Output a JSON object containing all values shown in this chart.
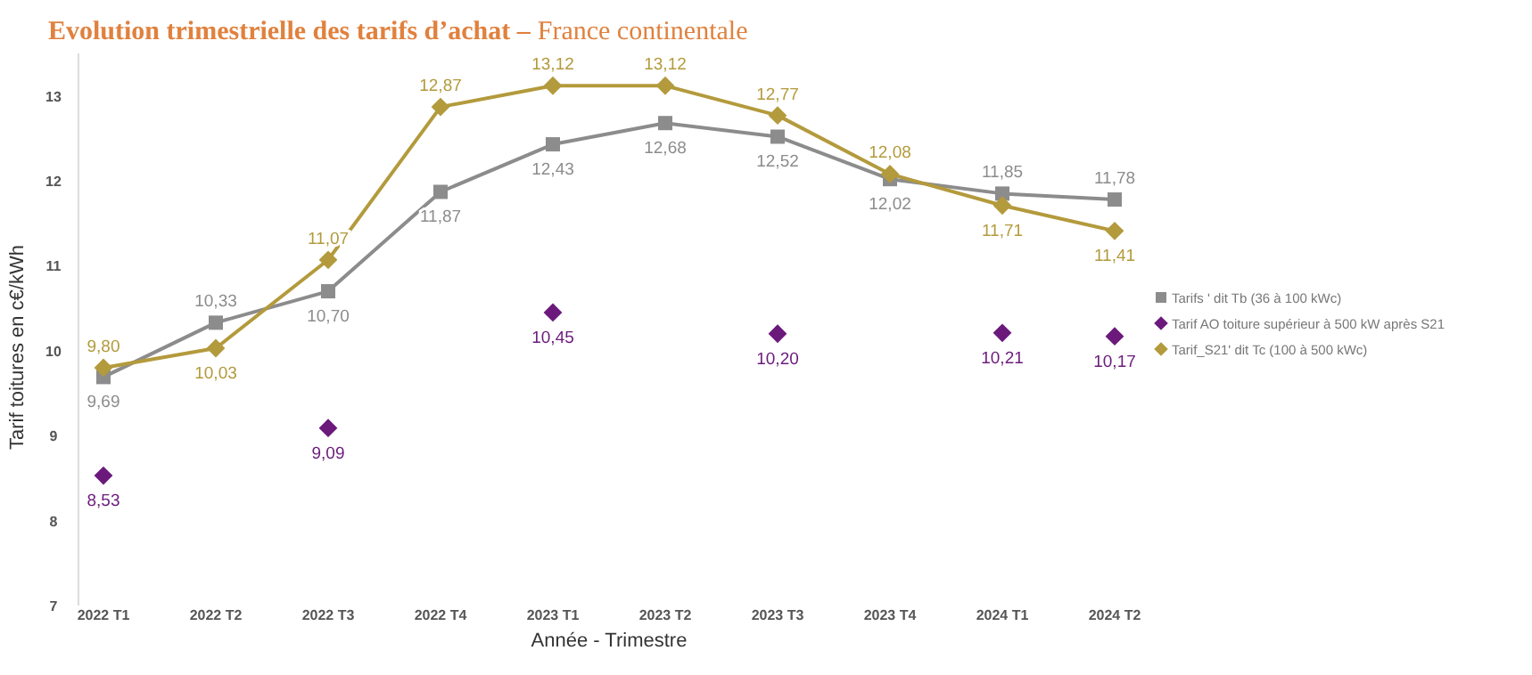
{
  "chart_data": {
    "type": "line",
    "title": "Evolution trimestrielle des tarifs d’achat –",
    "subtitle": "France continentale",
    "xlabel": "Année - Trimestre",
    "ylabel": "Tarif toitures en c€/kWh",
    "categories": [
      "2022 T1",
      "2022 T2",
      "2022 T3",
      "2022 T4",
      "2023 T1",
      "2023 T2",
      "2023 T3",
      "2023 T4",
      "2024 T1",
      "2024 T2"
    ],
    "series": [
      {
        "name": "Tarifs ' dit Tb (36 à 100 kWc)",
        "marker": "square",
        "color": "#8c8c8c",
        "values": [
          9.69,
          10.33,
          10.7,
          11.87,
          12.43,
          12.68,
          12.52,
          12.02,
          11.85,
          11.78
        ],
        "value_labels": [
          "9,69",
          "10,33",
          "10,70",
          "11,87",
          "12,43",
          "12,68",
          "12,52",
          "12,02",
          "11,85",
          "11,78"
        ]
      },
      {
        "name": "Tarif AO toiture supérieur à 500 kW après S21",
        "type": "scatter",
        "marker": "diamond",
        "color": "#6b1a7c",
        "values": [
          8.53,
          null,
          9.09,
          null,
          10.45,
          null,
          10.2,
          null,
          10.21,
          10.17
        ],
        "value_labels": [
          "8,53",
          null,
          "9,09",
          null,
          "10,45",
          null,
          "10,20",
          null,
          "10,21",
          "10,17"
        ]
      },
      {
        "name": "Tarif_S21' dit Tc (100 à 500 kWc)",
        "marker": "diamond",
        "color": "#b39a3c",
        "values": [
          9.8,
          10.03,
          11.07,
          12.87,
          13.12,
          13.12,
          12.77,
          12.08,
          11.71,
          11.41
        ],
        "value_labels": [
          "9,80",
          "10,03",
          "11,07",
          "12,87",
          "13,12",
          "13,12",
          "12,77",
          "12,08",
          "11,71",
          "11,41"
        ]
      }
    ],
    "ylim": [
      7,
      13.5
    ],
    "yticks": [
      7,
      8,
      9,
      10,
      11,
      12,
      13
    ],
    "grid": false,
    "legend": "right"
  }
}
